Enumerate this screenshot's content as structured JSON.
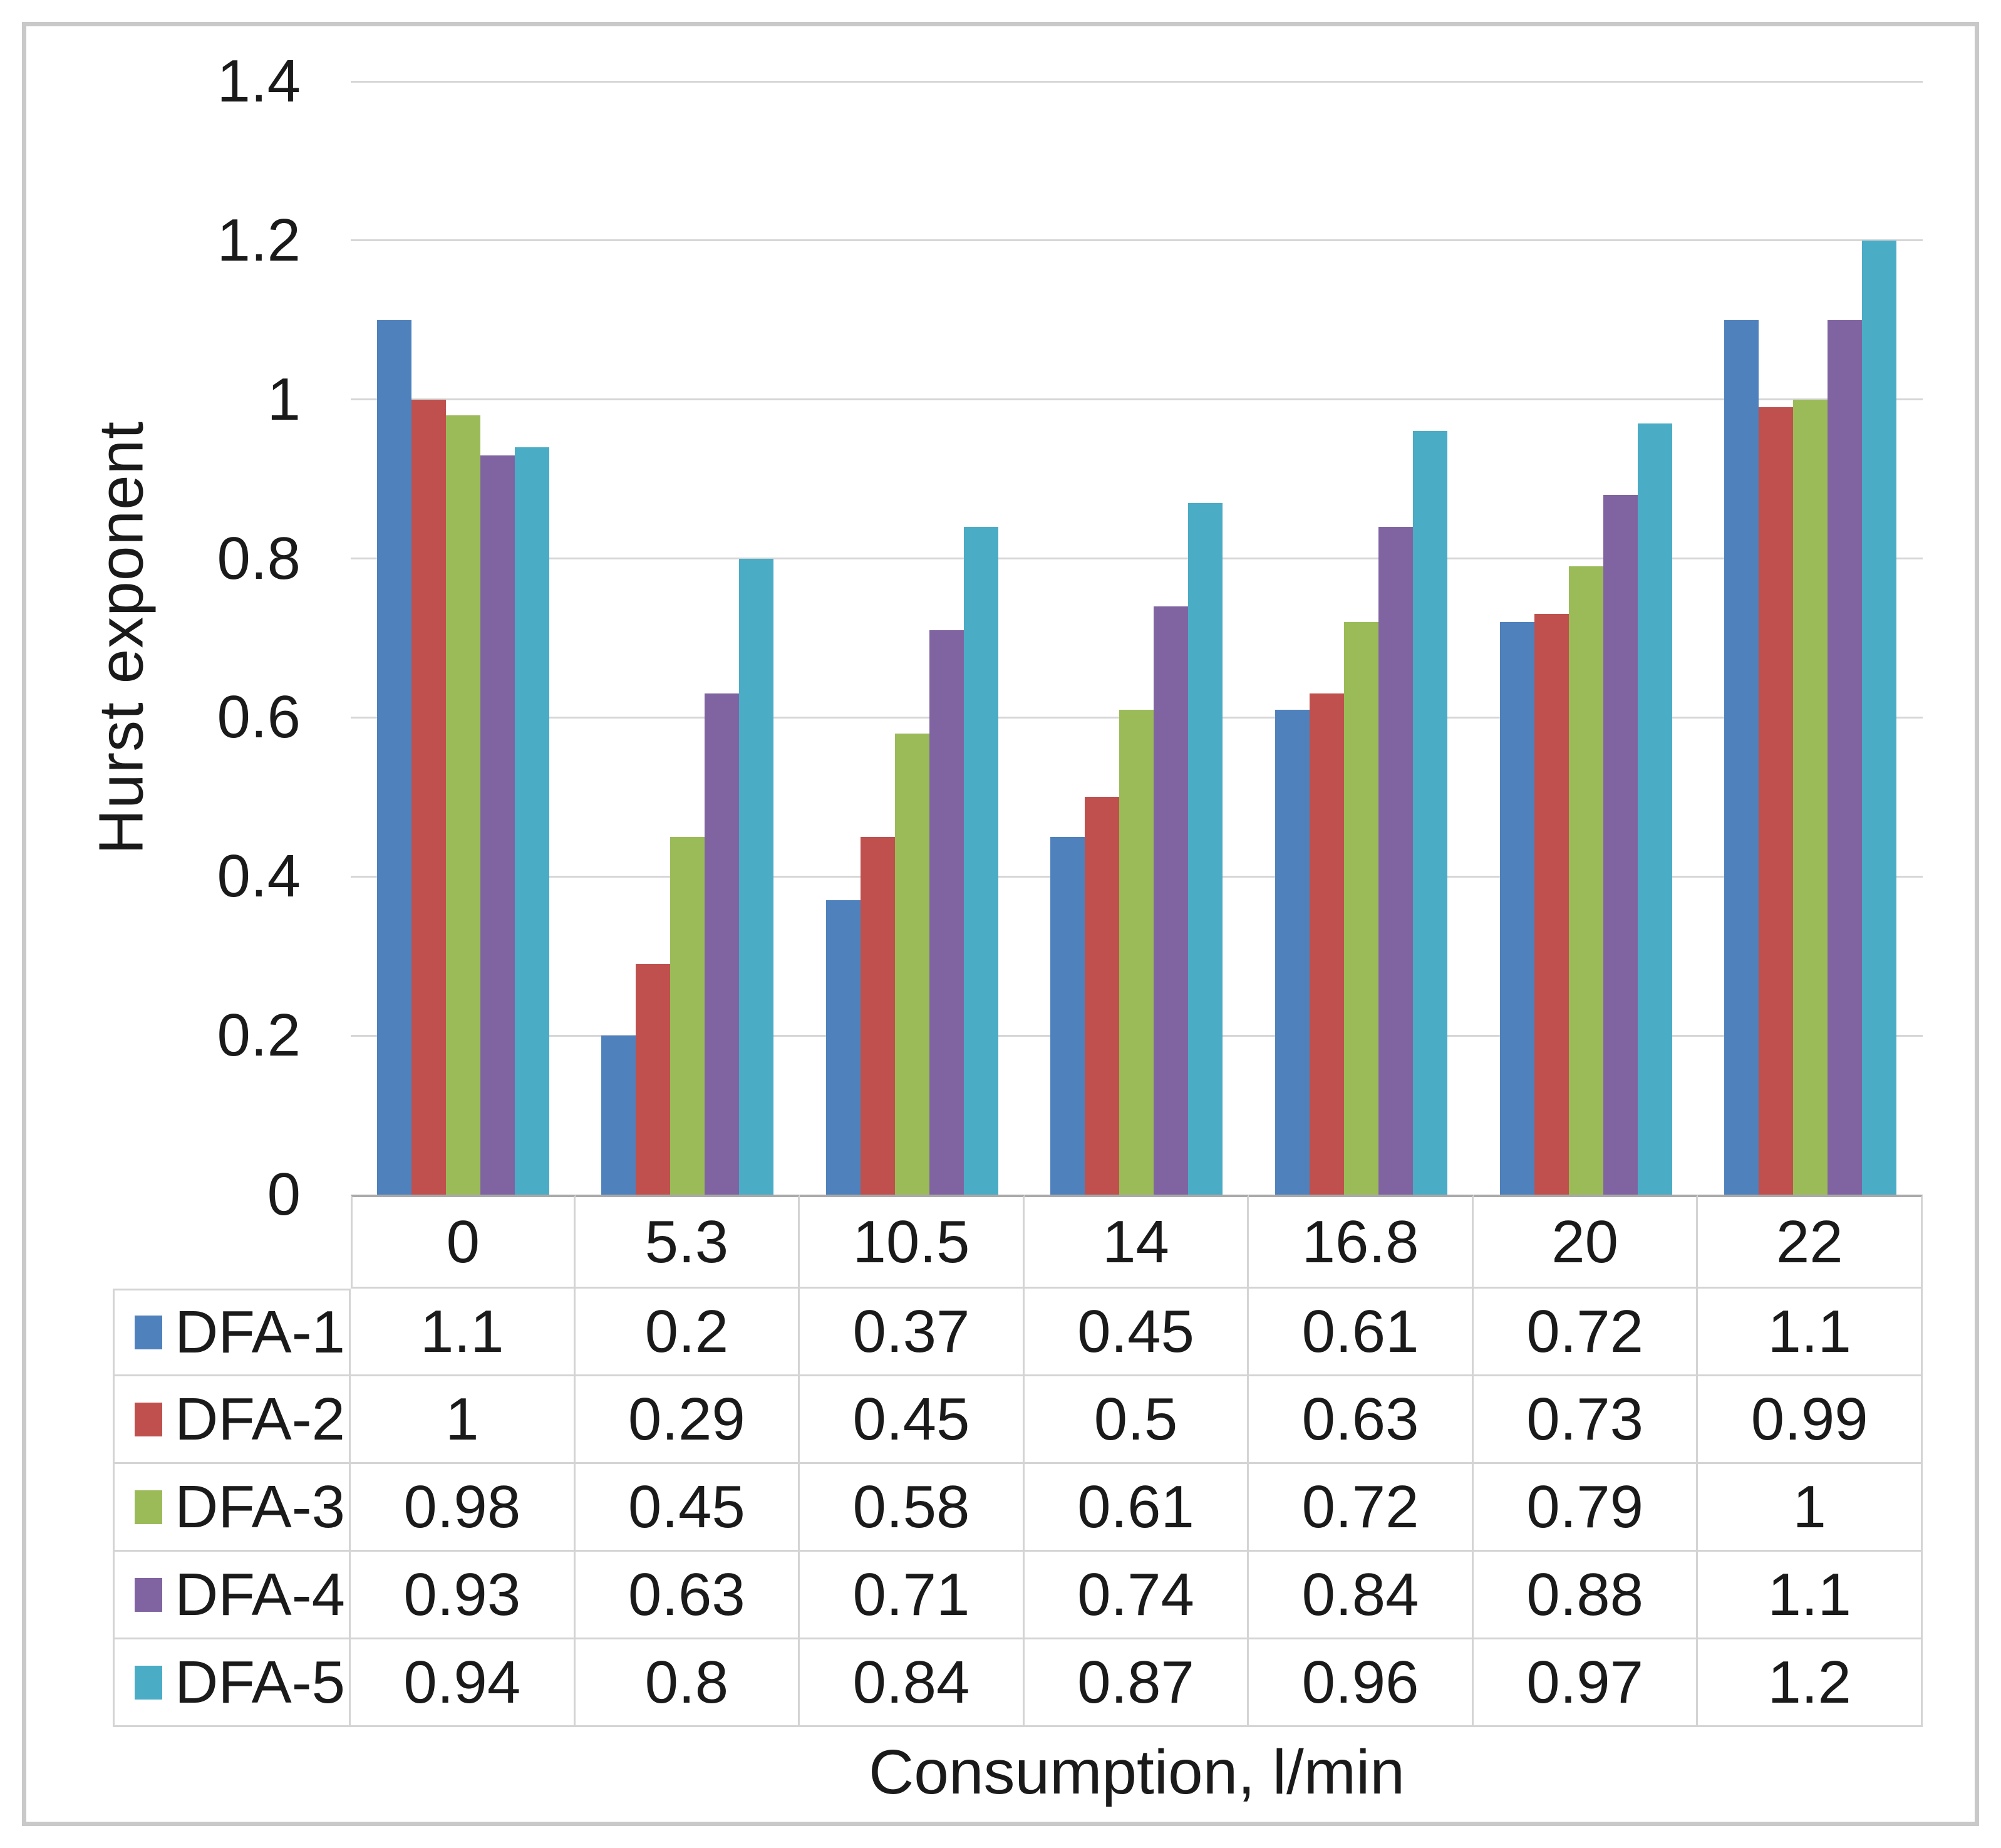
{
  "chart_data": {
    "type": "bar",
    "title": "",
    "ylabel": "Hurst exponent",
    "xlabel": "Consumption,  l/min",
    "categories": [
      "0",
      "5.3",
      "10.5",
      "14",
      "16.8",
      "20",
      "22"
    ],
    "series": [
      {
        "name": "DFA-1",
        "color": "#4F81BD",
        "values": [
          1.1,
          0.2,
          0.37,
          0.45,
          0.61,
          0.72,
          1.1
        ]
      },
      {
        "name": "DFA-2",
        "color": "#C0504D",
        "values": [
          1,
          0.29,
          0.45,
          0.5,
          0.63,
          0.73,
          0.99
        ]
      },
      {
        "name": "DFA-3",
        "color": "#9BBB59",
        "values": [
          0.98,
          0.45,
          0.58,
          0.61,
          0.72,
          0.79,
          1
        ]
      },
      {
        "name": "DFA-4",
        "color": "#8064A2",
        "values": [
          0.93,
          0.63,
          0.71,
          0.74,
          0.84,
          0.88,
          1.1
        ]
      },
      {
        "name": "DFA-5",
        "color": "#4BACC6",
        "values": [
          0.94,
          0.8,
          0.84,
          0.87,
          0.96,
          0.97,
          1.2
        ]
      }
    ],
    "ylim": [
      0,
      1.4
    ],
    "ytick_step": 0.2,
    "yticks": [
      "0",
      "0.2",
      "0.4",
      "0.6",
      "0.8",
      "1",
      "1.2",
      "1.4"
    ],
    "grid": "horizontal",
    "legend_position": "table-left",
    "colors": {
      "gridline": "#D6D6D6",
      "axis_line": "#A9A9A9",
      "table_border": "#D4D4D4",
      "frame_border": "#C9C9C9",
      "text": "#1A1A1A",
      "background": "#FFFFFF"
    }
  }
}
